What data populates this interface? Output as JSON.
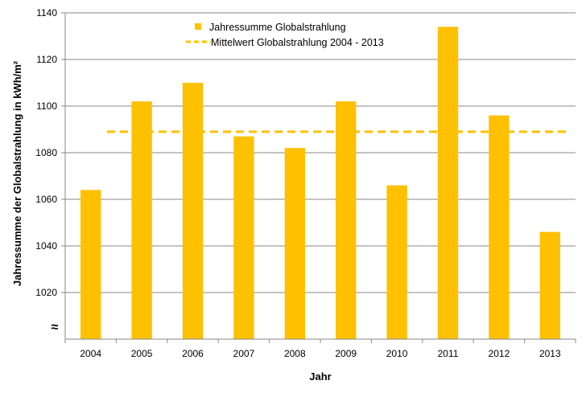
{
  "chart_data": {
    "type": "bar",
    "categories": [
      "2004",
      "2005",
      "2006",
      "2007",
      "2008",
      "2009",
      "2010",
      "2011",
      "2012",
      "2013"
    ],
    "series": [
      {
        "name": "Jahressumme Globalstrahlung",
        "values": [
          1064,
          1102,
          1110,
          1087,
          1082,
          1102,
          1066,
          1134,
          1096,
          1046
        ]
      }
    ],
    "reference_line": {
      "name": "Mittelwert Globalstrahlung 2004 - 2013",
      "value": 1089,
      "style": "dashed"
    },
    "xlabel": "Jahr",
    "ylabel": "Jahressumme der Globalstrahlung in kWh/m²",
    "ylim": [
      1000,
      1140
    ],
    "y_ticks": [
      1020,
      1040,
      1060,
      1080,
      1100,
      1120,
      1140
    ],
    "y_tick_labels": [
      "1020",
      "1040",
      "1060",
      "1080",
      "1100",
      "1120",
      "1140"
    ],
    "axis_break_symbol": "≈",
    "grid": true,
    "legend_position": "top-center",
    "colors": {
      "bar": "#FFC000",
      "mean_line": "#FFC000",
      "gridline": "#878787",
      "axis": "#878787"
    }
  }
}
